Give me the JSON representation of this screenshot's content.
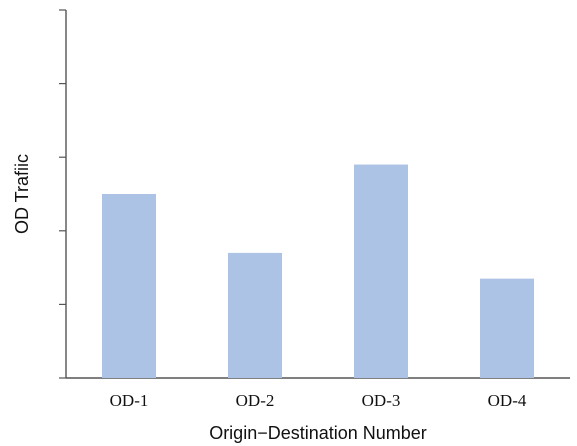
{
  "chart_data": {
    "type": "bar",
    "categories": [
      "OD-1",
      "OD-2",
      "OD-3",
      "OD-4"
    ],
    "values": [
      2.5,
      1.7,
      2.9,
      1.35
    ],
    "ylim": [
      0,
      5
    ],
    "y_tick_count": 5,
    "xlabel": "Origin−Destination Number",
    "ylabel": "OD Trafiic",
    "y_tick_labels_shown": false,
    "grid": false,
    "legend": "none",
    "colors": {
      "bar": "#adc3e6",
      "axis": "#555555",
      "text": "#111111"
    }
  }
}
